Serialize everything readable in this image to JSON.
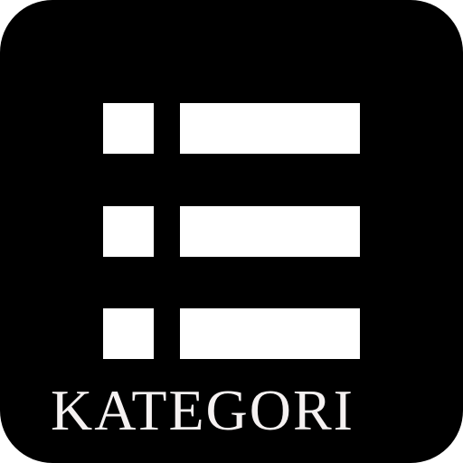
{
  "icon": {
    "name": "list-icon",
    "background_color": "#000000",
    "foreground_color": "#ffffff",
    "label_color": "#f5f1f1",
    "rows": [
      {
        "bullet": "square",
        "bar": "rectangle"
      },
      {
        "bullet": "square",
        "bar": "rectangle"
      },
      {
        "bullet": "square",
        "bar": "rectangle"
      }
    ]
  },
  "label": {
    "text": "KATEGORI"
  }
}
